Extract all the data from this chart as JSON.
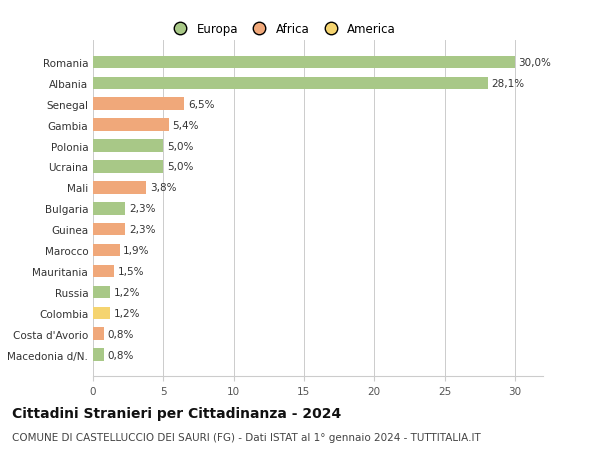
{
  "categories": [
    "Macedonia d/N.",
    "Costa d'Avorio",
    "Colombia",
    "Russia",
    "Mauritania",
    "Marocco",
    "Guinea",
    "Bulgaria",
    "Mali",
    "Ucraina",
    "Polonia",
    "Gambia",
    "Senegal",
    "Albania",
    "Romania"
  ],
  "values": [
    0.8,
    0.8,
    1.2,
    1.2,
    1.5,
    1.9,
    2.3,
    2.3,
    3.8,
    5.0,
    5.0,
    5.4,
    6.5,
    28.1,
    30.0
  ],
  "labels": [
    "0,8%",
    "0,8%",
    "1,2%",
    "1,2%",
    "1,5%",
    "1,9%",
    "2,3%",
    "2,3%",
    "3,8%",
    "5,0%",
    "5,0%",
    "5,4%",
    "6,5%",
    "28,1%",
    "30,0%"
  ],
  "continent": [
    "Europa",
    "Africa",
    "America",
    "Europa",
    "Africa",
    "Africa",
    "Africa",
    "Europa",
    "Africa",
    "Europa",
    "Europa",
    "Africa",
    "Africa",
    "Europa",
    "Europa"
  ],
  "colors": {
    "Europa": "#a8c887",
    "Africa": "#f0a87a",
    "America": "#f5d470"
  },
  "xlim": [
    0,
    32
  ],
  "xticks": [
    0,
    5,
    10,
    15,
    20,
    25,
    30
  ],
  "title": "Cittadini Stranieri per Cittadinanza - 2024",
  "subtitle": "COMUNE DI CASTELLUCCIO DEI SAURI (FG) - Dati ISTAT al 1° gennaio 2024 - TUTTITALIA.IT",
  "background_color": "#ffffff",
  "grid_color": "#cccccc",
  "bar_height": 0.6,
  "title_fontsize": 10,
  "subtitle_fontsize": 7.5,
  "label_fontsize": 7.5,
  "tick_fontsize": 7.5,
  "legend_fontsize": 8.5
}
